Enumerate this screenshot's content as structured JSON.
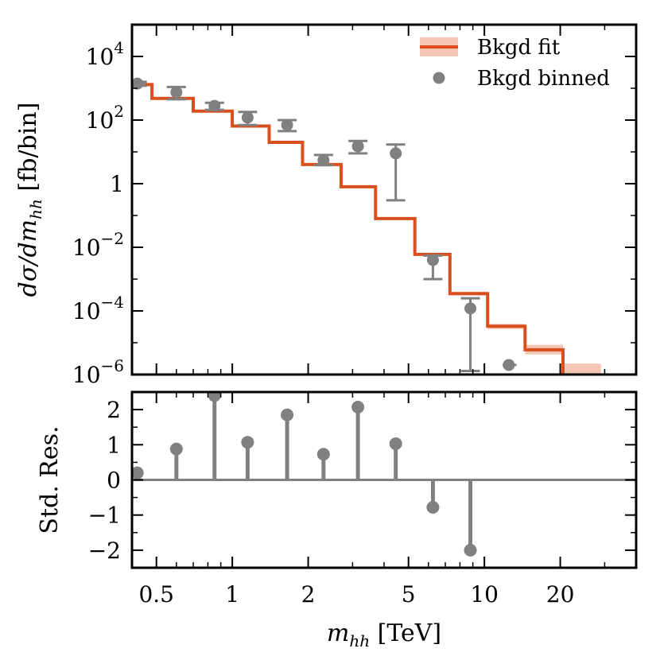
{
  "chart_data": {
    "type": "step-errorbar-residual",
    "colors": {
      "fit_line": "#d9501e",
      "fit_band": "#f5c6b5",
      "binned": "#808080",
      "residual": "#808080"
    },
    "x_axis": {
      "title_var": "m",
      "title_sub": "hh",
      "title_unit": "[TeV]",
      "scale": "log",
      "xlim": [
        0.4,
        40
      ],
      "ticks": [
        {
          "value": 0.5,
          "label": "0.5"
        },
        {
          "value": 1,
          "label": "1"
        },
        {
          "value": 2,
          "label": "2"
        },
        {
          "value": 5,
          "label": "5"
        },
        {
          "value": 10,
          "label": "10"
        },
        {
          "value": 20,
          "label": "20"
        }
      ]
    },
    "top_panel": {
      "ylabel": "dσ/dm_hh [fb/bin]",
      "yscale": "log",
      "ylim": [
        1e-06,
        100000.0
      ],
      "yticks": [
        {
          "value": 10000,
          "base": "10",
          "exp": "4"
        },
        {
          "value": 100,
          "base": "10",
          "exp": "2"
        },
        {
          "value": 1,
          "base": "1",
          "exp": ""
        },
        {
          "value": 0.01,
          "base": "10",
          "exp": "−2"
        },
        {
          "value": 0.0001,
          "base": "10",
          "exp": "−4"
        },
        {
          "value": 1e-06,
          "base": "10",
          "exp": "−6"
        }
      ],
      "legend": [
        {
          "label": "Bkgd fit",
          "kind": "line-band"
        },
        {
          "label": "Bkgd binned",
          "kind": "marker"
        }
      ],
      "legend_position": "top-right",
      "fit_edges": [
        0.4,
        0.48,
        0.7,
        1.0,
        1.4,
        1.9,
        2.7,
        3.7,
        5.3,
        7.3,
        10.3,
        14.5,
        20.5,
        29.0
      ],
      "fit_values": [
        1300,
        480,
        190,
        65,
        20,
        4,
        0.8,
        0.08,
        0.006,
        0.00035,
        3.3e-05,
        6e-06,
        9e-07
      ],
      "fit_band_low": [
        1250,
        460,
        182,
        62,
        19,
        3.8,
        0.76,
        0.075,
        0.0056,
        0.00031,
        2.7e-05,
        4.3e-06,
        6e-07
      ],
      "fit_band_high": [
        1350,
        500,
        198,
        68,
        21,
        4.2,
        0.84,
        0.085,
        0.0064,
        0.0004,
        3.9e-05,
        8.6e-06,
        2.2e-06
      ],
      "binned": [
        {
          "x": 0.42,
          "y": 1400,
          "lo": 1200,
          "hi": 1600,
          "xerr": [
            0.4,
            0.45
          ]
        },
        {
          "x": 0.6,
          "y": 750,
          "lo": 450,
          "hi": 1100,
          "xerr": null
        },
        {
          "x": 0.85,
          "y": 280,
          "lo": 210,
          "hi": 350,
          "xerr": null
        },
        {
          "x": 1.15,
          "y": 120,
          "lo": 70,
          "hi": 180,
          "xerr": null
        },
        {
          "x": 1.65,
          "y": 70,
          "lo": 45,
          "hi": 100,
          "xerr": null
        },
        {
          "x": 2.3,
          "y": 5.5,
          "lo": 3.8,
          "hi": 8,
          "xerr": null
        },
        {
          "x": 3.15,
          "y": 15,
          "lo": 9,
          "hi": 22,
          "xerr": null
        },
        {
          "x": 4.45,
          "y": 9,
          "lo": 0.3,
          "hi": 17,
          "xerr": null
        },
        {
          "x": 6.25,
          "y": 0.004,
          "lo": 0.001,
          "hi": 0.0055,
          "xerr": null
        },
        {
          "x": 8.8,
          "y": 0.00012,
          "lo": 1.3e-06,
          "hi": 0.00025,
          "xerr": null
        },
        {
          "x": 12.5,
          "y": 2e-06,
          "lo": null,
          "hi": null,
          "xerr": [
            11.8,
            13.4
          ]
        }
      ]
    },
    "bottom_panel": {
      "ylabel": "Std. Res.",
      "ylim": [
        -2.5,
        2.5
      ],
      "yticks": [
        {
          "value": 2,
          "label": "2"
        },
        {
          "value": 1,
          "label": "1"
        },
        {
          "value": 0,
          "label": "0"
        },
        {
          "value": -1,
          "label": "−1"
        },
        {
          "value": -2,
          "label": "−2"
        }
      ],
      "x": [
        0.42,
        0.6,
        0.85,
        1.15,
        1.65,
        2.3,
        3.15,
        4.45,
        6.25,
        8.8
      ],
      "residuals": [
        0.2,
        0.88,
        2.4,
        1.07,
        1.85,
        0.73,
        2.07,
        1.03,
        -0.78,
        -2.0
      ]
    }
  }
}
